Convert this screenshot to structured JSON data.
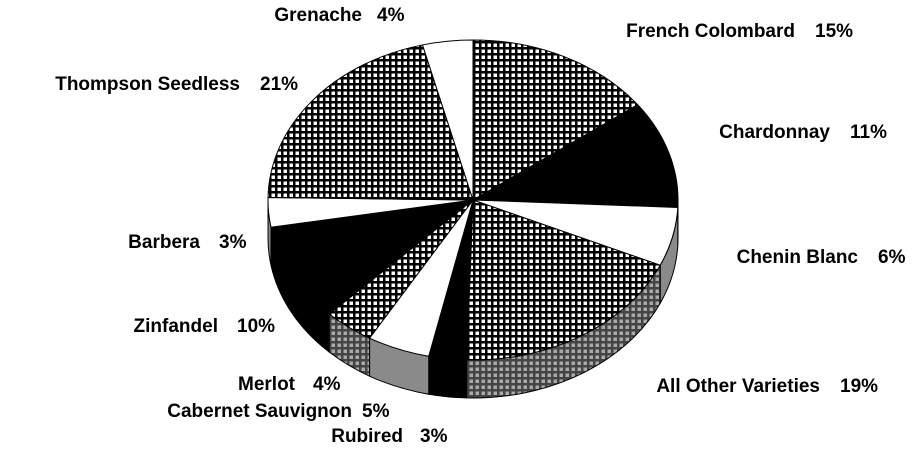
{
  "chart_data": {
    "type": "pie",
    "categories": [
      "French Colombard",
      "Chardonnay",
      "Chenin Blanc",
      "All Other Varieties",
      "Rubired",
      "Cabernet Sauvignon",
      "Merlot",
      "Zinfandel",
      "Barbera",
      "Thompson Seedless",
      "Grenache"
    ],
    "values": [
      15,
      11,
      6,
      19,
      3,
      5,
      4,
      10,
      3,
      21,
      4
    ],
    "value_labels": [
      "15%",
      "11%",
      "6%",
      "19%",
      "3%",
      "5%",
      "4%",
      "10%",
      "3%",
      "21%",
      "4%"
    ],
    "colors": [
      "checker",
      "black",
      "white",
      "checker",
      "black",
      "white",
      "checker",
      "black",
      "white",
      "checker",
      "white"
    ]
  }
}
